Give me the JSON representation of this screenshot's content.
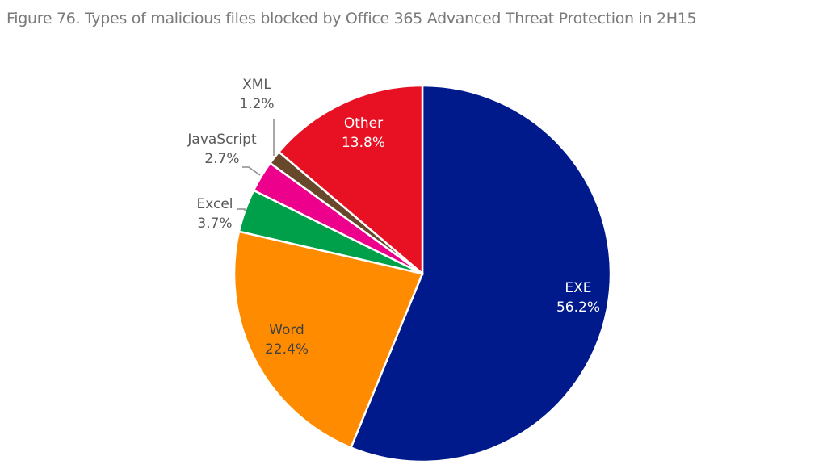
{
  "chart_data": {
    "type": "pie",
    "title": "Figure 76. Types of malicious files blocked by Office 365 Advanced Threat Protection in 2H15",
    "start": "top",
    "direction": "clockwise",
    "slices": [
      {
        "label": "EXE",
        "value": 56.2,
        "value_label": "56.2%",
        "color": "#001a8c",
        "label_color": "#ffffff"
      },
      {
        "label": "Word",
        "value": 22.4,
        "value_label": "22.4%",
        "color": "#ff8c00",
        "label_color": "#404040"
      },
      {
        "label": "Excel",
        "value": 3.7,
        "value_label": "3.7%",
        "color": "#00a04a",
        "label_color": "#595959"
      },
      {
        "label": "JavaScript",
        "value": 2.7,
        "value_label": "2.7%",
        "color": "#ec008c",
        "label_color": "#595959"
      },
      {
        "label": "XML",
        "value": 1.2,
        "value_label": "1.2%",
        "color": "#68482a",
        "label_color": "#595959"
      },
      {
        "label": "Other",
        "value": 13.8,
        "value_label": "13.8%",
        "color": "#e81123",
        "label_color": "#ffffff"
      }
    ]
  }
}
